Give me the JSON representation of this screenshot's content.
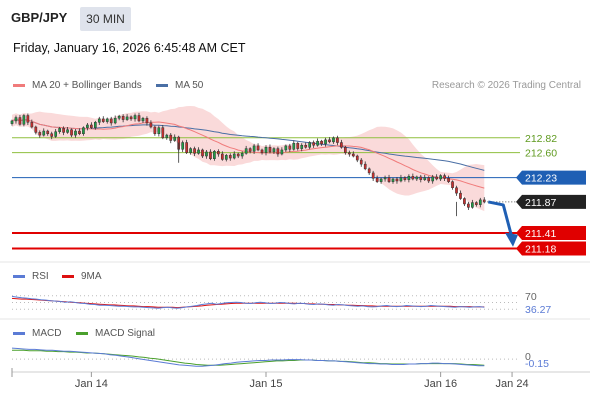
{
  "header": {
    "symbol": "GBP/JPY",
    "timeframe": "30 MIN",
    "datetime": "Friday, January 16, 2026 6:45:48 AM CET"
  },
  "credit": "Research © 2026 Trading Central",
  "colors": {
    "candle_up": "#1f9d47",
    "candle_down": "#c62f2f",
    "bollinger_fill": "#f9d3d3",
    "ma20": "#f07b7b",
    "ma50": "#4a6fa5",
    "resistance": "#8fbf3f",
    "pivot": "#1f5fb4",
    "support": "#e00000",
    "arrow": "#1f5fb4",
    "rsi": "#5b7bd5",
    "rsi_ma": "#dd1111",
    "macd": "#5b7bd5",
    "macd_signal": "#4aa02c"
  },
  "chart_data": [
    {
      "type": "candlestick",
      "legend": [
        {
          "label": "MA 20 + Bollinger Bands",
          "color": "#f07b7b"
        },
        {
          "label": "MA 50",
          "color": "#4a6fa5"
        }
      ],
      "legend_position": "top-left",
      "ylim": [
        210.98,
        213.38
      ],
      "x_index_range": [
        0,
        118
      ],
      "closes": [
        213.07,
        213.12,
        213.02,
        213.15,
        213.05,
        212.98,
        212.9,
        212.86,
        212.92,
        212.88,
        212.84,
        212.91,
        212.96,
        212.9,
        212.94,
        212.86,
        212.92,
        212.88,
        212.97,
        213.01,
        212.97,
        213.05,
        213.1,
        213.06,
        213.1,
        213.04,
        213.11,
        213.14,
        213.09,
        213.13,
        213.1,
        213.15,
        213.07,
        213.11,
        213.04,
        212.98,
        212.88,
        212.97,
        212.82,
        212.86,
        212.78,
        212.83,
        212.65,
        212.75,
        212.6,
        212.66,
        212.59,
        212.64,
        212.55,
        212.61,
        212.51,
        212.62,
        212.58,
        212.5,
        212.56,
        212.52,
        212.58,
        212.55,
        212.59,
        212.66,
        212.62,
        212.7,
        212.64,
        212.6,
        212.68,
        212.61,
        212.66,
        212.58,
        212.64,
        212.7,
        212.65,
        212.74,
        212.66,
        212.71,
        212.68,
        212.75,
        212.71,
        212.77,
        212.73,
        212.79,
        212.76,
        212.82,
        212.75,
        212.68,
        212.6,
        212.58,
        212.55,
        212.49,
        212.43,
        212.36,
        212.3,
        212.22,
        212.17,
        212.21,
        212.23,
        212.17,
        212.21,
        212.18,
        212.23,
        212.2,
        212.25,
        212.21,
        212.24,
        212.2,
        212.23,
        212.18,
        212.24,
        212.21,
        212.26,
        212.22,
        212.17,
        212.08,
        212.0,
        211.92,
        211.84,
        211.79,
        211.86,
        211.83,
        211.9,
        211.87
      ],
      "pivot": 212.23,
      "resistances": [
        212.82,
        212.6
      ],
      "supports": [
        211.41,
        211.18
      ],
      "last_price": 211.87,
      "projection": [
        211.87,
        211.34
      ],
      "labels": {
        "pivot": "212.23",
        "resistances": [
          "212.82",
          "212.60"
        ],
        "supports": [
          "211.41",
          "211.18"
        ],
        "last_price": "211.87"
      }
    },
    {
      "type": "line",
      "legend": [
        {
          "label": "RSI",
          "color": "#5b7bd5"
        },
        {
          "label": "9MA",
          "color": "#dd1111"
        }
      ],
      "level_label": "70",
      "value_label": "36.27",
      "ylim": [
        10,
        90
      ],
      "levels": [
        70,
        50,
        30
      ],
      "rsi": [
        68,
        66,
        64,
        63,
        61,
        60,
        58,
        57,
        55,
        54,
        53,
        51,
        52,
        50,
        48,
        47,
        45,
        44,
        42,
        42,
        41,
        40,
        39,
        39,
        38,
        37,
        37,
        36,
        35,
        34,
        33,
        35,
        36,
        34,
        33,
        35,
        37,
        39,
        41,
        44,
        46,
        48,
        45,
        47,
        49,
        50,
        51,
        50,
        48,
        47,
        49,
        51,
        49,
        47,
        48,
        50,
        49,
        47,
        46,
        48,
        47,
        45,
        44,
        46,
        45,
        43,
        42,
        44,
        43,
        41,
        40,
        39,
        40,
        38,
        37,
        38,
        40,
        41,
        39,
        38,
        39,
        41,
        40,
        39,
        38,
        39,
        41,
        40,
        39,
        38,
        37,
        36,
        38,
        37,
        36,
        37,
        38,
        36
      ],
      "ma9": [
        62,
        61,
        60,
        60,
        59,
        58,
        57,
        56,
        55,
        54,
        53,
        52,
        51,
        50,
        49,
        48,
        47,
        46,
        45,
        44,
        43,
        43,
        42,
        41,
        40,
        40,
        39,
        38,
        38,
        37,
        36,
        36,
        36,
        36,
        35,
        36,
        37,
        38,
        39,
        40,
        42,
        43,
        44,
        45,
        46,
        47,
        48,
        48,
        48,
        48,
        48,
        48,
        48,
        48,
        48,
        48,
        48,
        48,
        48,
        47,
        47,
        46,
        46,
        45,
        45,
        44,
        44,
        43,
        43,
        42,
        42,
        41,
        41,
        40,
        40,
        39,
        39,
        39,
        39,
        39,
        39,
        39,
        39,
        39,
        39,
        39,
        39,
        39,
        39,
        39,
        39,
        38,
        38,
        38,
        38,
        37,
        37,
        37
      ]
    },
    {
      "type": "line",
      "legend": [
        {
          "label": "MACD",
          "color": "#5b7bd5"
        },
        {
          "label": "MACD Signal",
          "color": "#4aa02c"
        }
      ],
      "level_label": "0",
      "value_label": "-0.15",
      "ylim": [
        -0.2,
        0.32
      ],
      "macd": [
        0.25,
        0.24,
        0.23,
        0.22,
        0.22,
        0.21,
        0.2,
        0.2,
        0.19,
        0.18,
        0.18,
        0.17,
        0.16,
        0.15,
        0.14,
        0.13,
        0.12,
        0.1,
        0.09,
        0.07,
        0.05,
        0.03,
        0.01,
        -0.01,
        -0.03,
        -0.05,
        -0.07,
        -0.09,
        -0.11,
        -0.13,
        -0.14,
        -0.15,
        -0.16,
        -0.16,
        -0.15,
        -0.14,
        -0.12,
        -0.1,
        -0.09,
        -0.07,
        -0.06,
        -0.05,
        -0.04,
        -0.03,
        -0.03,
        -0.02,
        -0.02,
        -0.02,
        -0.01,
        -0.01,
        -0.01,
        -0.02,
        -0.02,
        -0.03,
        -0.03,
        -0.04,
        -0.04,
        -0.05,
        -0.06,
        -0.07,
        -0.08,
        -0.09,
        -0.1,
        -0.1,
        -0.11,
        -0.11,
        -0.12,
        -0.12,
        -0.12,
        -0.11,
        -0.11,
        -0.1,
        -0.1,
        -0.09,
        -0.09,
        -0.1,
        -0.1,
        -0.11,
        -0.12,
        -0.13,
        -0.14,
        -0.15,
        -0.15
      ],
      "signal": [
        0.2,
        0.2,
        0.2,
        0.19,
        0.19,
        0.19,
        0.18,
        0.18,
        0.17,
        0.17,
        0.16,
        0.16,
        0.15,
        0.14,
        0.14,
        0.13,
        0.12,
        0.11,
        0.1,
        0.09,
        0.08,
        0.07,
        0.05,
        0.04,
        0.02,
        0.01,
        -0.01,
        -0.03,
        -0.05,
        -0.07,
        -0.09,
        -0.1,
        -0.12,
        -0.13,
        -0.14,
        -0.14,
        -0.14,
        -0.13,
        -0.12,
        -0.11,
        -0.1,
        -0.09,
        -0.08,
        -0.07,
        -0.06,
        -0.05,
        -0.04,
        -0.04,
        -0.03,
        -0.03,
        -0.02,
        -0.02,
        -0.02,
        -0.03,
        -0.03,
        -0.04,
        -0.04,
        -0.05,
        -0.05,
        -0.06,
        -0.07,
        -0.08,
        -0.08,
        -0.09,
        -0.1,
        -0.1,
        -0.11,
        -0.11,
        -0.11,
        -0.11,
        -0.11,
        -0.1,
        -0.1,
        -0.1,
        -0.1,
        -0.1,
        -0.1,
        -0.1,
        -0.11,
        -0.12,
        -0.12,
        -0.13,
        -0.14
      ]
    }
  ],
  "x_axis": {
    "ticks": [
      {
        "label": "Jan 14",
        "index": 20
      },
      {
        "label": "Jan 15",
        "index": 64
      },
      {
        "label": "Jan 16",
        "index": 108
      },
      {
        "label": "Jan 24",
        "index": 126
      }
    ],
    "max_index": 128
  }
}
